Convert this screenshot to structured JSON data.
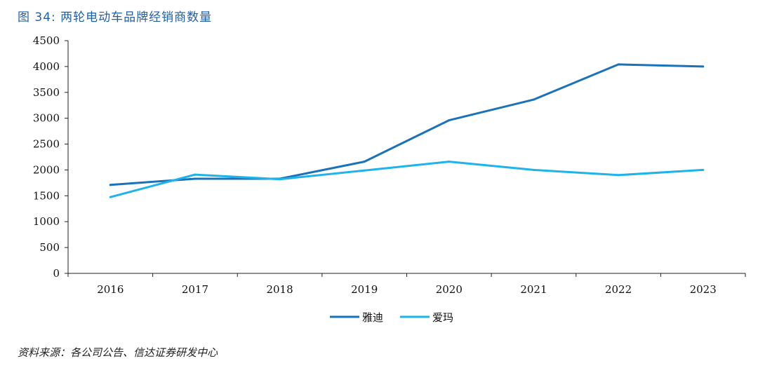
{
  "figure": {
    "title": "图 34:  两轮电动车品牌经销商数量",
    "source": "资料来源：各公司公告、信达证券研发中心"
  },
  "chart_data": {
    "type": "line",
    "x": [
      "2016",
      "2017",
      "2018",
      "2019",
      "2020",
      "2021",
      "2022",
      "2023"
    ],
    "series": [
      {
        "name": "雅迪",
        "color": "#1a73b8",
        "values": [
          1710,
          1830,
          1830,
          2160,
          2960,
          3360,
          4040,
          4000
        ]
      },
      {
        "name": "爱玛",
        "color": "#1eb3ea",
        "values": [
          1475,
          1910,
          1820,
          1990,
          2160,
          2000,
          1900,
          2000
        ]
      }
    ],
    "ylim": [
      0,
      4500
    ],
    "yticks": [
      0,
      500,
      1000,
      1500,
      2000,
      2500,
      3000,
      3500,
      4000,
      4500
    ],
    "grid": false,
    "legend": "bottom-center"
  }
}
